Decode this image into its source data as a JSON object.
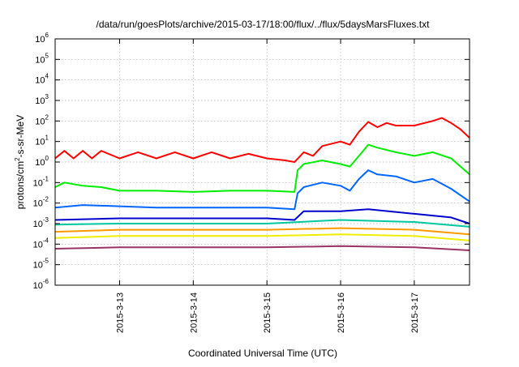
{
  "chart_data": {
    "type": "line",
    "title": "/data/run/goesPlots/archive/2015-03-17/18:00/flux/../flux/5daysMarsFluxes.txt",
    "xlabel": "Coordinated Universal Time (UTC)",
    "ylabel": "protons/cm2-s-sr-MeV",
    "ylabel_parts": [
      "protons/cm",
      "2",
      "-s-sr-MeV"
    ],
    "yscale": "log",
    "ylim": [
      1e-06,
      1000000.0
    ],
    "xlim": [
      "2015-03-12 03:00",
      "2015-03-17 18:00"
    ],
    "grid": true,
    "y_ticks": [
      {
        "base": "10",
        "exp": "-6",
        "value": 1e-06
      },
      {
        "base": "10",
        "exp": "-5",
        "value": 1e-05
      },
      {
        "base": "10",
        "exp": "-4",
        "value": 0.0001
      },
      {
        "base": "10",
        "exp": "-3",
        "value": 0.001
      },
      {
        "base": "10",
        "exp": "-2",
        "value": 0.01
      },
      {
        "base": "10",
        "exp": "-1",
        "value": 0.1
      },
      {
        "base": "10",
        "exp": "0",
        "value": 1
      },
      {
        "base": "10",
        "exp": "1",
        "value": 10
      },
      {
        "base": "10",
        "exp": "2",
        "value": 100
      },
      {
        "base": "10",
        "exp": "3",
        "value": 1000
      },
      {
        "base": "10",
        "exp": "4",
        "value": 10000
      },
      {
        "base": "10",
        "exp": "5",
        "value": 100000
      },
      {
        "base": "10",
        "exp": "6",
        "value": 1000000
      }
    ],
    "x_ticks": [
      {
        "label": "2015-3-13",
        "date": "2015-03-13 00:00"
      },
      {
        "label": "2015-3-14",
        "date": "2015-03-14 00:00"
      },
      {
        "label": "2015-3-15",
        "date": "2015-03-15 00:00"
      },
      {
        "label": "2015-3-16",
        "date": "2015-03-16 00:00"
      },
      {
        "label": "2015-3-17",
        "date": "2015-03-17 00:00"
      }
    ],
    "series": [
      {
        "color": "#ff0000",
        "points": [
          [
            "2015-03-12 03:00",
            1.5
          ],
          [
            "2015-03-12 06:00",
            3.5
          ],
          [
            "2015-03-12 09:00",
            1.5
          ],
          [
            "2015-03-12 12:00",
            3.5
          ],
          [
            "2015-03-12 15:00",
            1.5
          ],
          [
            "2015-03-12 18:00",
            3.5
          ],
          [
            "2015-03-13 00:00",
            1.5
          ],
          [
            "2015-03-13 06:00",
            3.0
          ],
          [
            "2015-03-13 12:00",
            1.5
          ],
          [
            "2015-03-13 18:00",
            3.0
          ],
          [
            "2015-03-14 00:00",
            1.5
          ],
          [
            "2015-03-14 06:00",
            3.0
          ],
          [
            "2015-03-14 12:00",
            1.5
          ],
          [
            "2015-03-14 18:00",
            2.5
          ],
          [
            "2015-03-15 00:00",
            1.5
          ],
          [
            "2015-03-15 06:00",
            1.2
          ],
          [
            "2015-03-15 09:00",
            1.0
          ],
          [
            "2015-03-15 12:00",
            3.0
          ],
          [
            "2015-03-15 15:00",
            2.0
          ],
          [
            "2015-03-15 18:00",
            6.0
          ],
          [
            "2015-03-16 00:00",
            10
          ],
          [
            "2015-03-16 03:00",
            7.0
          ],
          [
            "2015-03-16 06:00",
            30
          ],
          [
            "2015-03-16 09:00",
            90
          ],
          [
            "2015-03-16 12:00",
            50
          ],
          [
            "2015-03-16 15:00",
            80
          ],
          [
            "2015-03-16 18:00",
            60
          ],
          [
            "2015-03-17 00:00",
            60
          ],
          [
            "2015-03-17 06:00",
            100
          ],
          [
            "2015-03-17 09:00",
            140
          ],
          [
            "2015-03-17 12:00",
            80
          ],
          [
            "2015-03-17 15:00",
            40
          ],
          [
            "2015-03-17 18:00",
            15
          ]
        ]
      },
      {
        "color": "#00ee00",
        "points": [
          [
            "2015-03-12 03:00",
            0.06
          ],
          [
            "2015-03-12 06:00",
            0.1
          ],
          [
            "2015-03-12 12:00",
            0.07
          ],
          [
            "2015-03-12 18:00",
            0.06
          ],
          [
            "2015-03-13 00:00",
            0.04
          ],
          [
            "2015-03-13 12:00",
            0.04
          ],
          [
            "2015-03-14 00:00",
            0.035
          ],
          [
            "2015-03-14 12:00",
            0.04
          ],
          [
            "2015-03-15 00:00",
            0.04
          ],
          [
            "2015-03-15 09:00",
            0.035
          ],
          [
            "2015-03-15 10:00",
            0.4
          ],
          [
            "2015-03-15 12:00",
            0.8
          ],
          [
            "2015-03-15 18:00",
            1.2
          ],
          [
            "2015-03-16 00:00",
            0.8
          ],
          [
            "2015-03-16 03:00",
            0.6
          ],
          [
            "2015-03-16 06:00",
            2.0
          ],
          [
            "2015-03-16 09:00",
            7.0
          ],
          [
            "2015-03-16 12:00",
            5.0
          ],
          [
            "2015-03-16 18:00",
            3.0
          ],
          [
            "2015-03-17 00:00",
            2.0
          ],
          [
            "2015-03-17 06:00",
            3.0
          ],
          [
            "2015-03-17 12:00",
            1.5
          ],
          [
            "2015-03-17 18:00",
            0.25
          ]
        ]
      },
      {
        "color": "#0066ff",
        "points": [
          [
            "2015-03-12 03:00",
            0.006
          ],
          [
            "2015-03-12 12:00",
            0.008
          ],
          [
            "2015-03-13 00:00",
            0.007
          ],
          [
            "2015-03-13 12:00",
            0.006
          ],
          [
            "2015-03-14 00:00",
            0.006
          ],
          [
            "2015-03-14 12:00",
            0.006
          ],
          [
            "2015-03-15 00:00",
            0.006
          ],
          [
            "2015-03-15 09:00",
            0.005
          ],
          [
            "2015-03-15 10:00",
            0.03
          ],
          [
            "2015-03-15 12:00",
            0.06
          ],
          [
            "2015-03-15 18:00",
            0.1
          ],
          [
            "2015-03-16 00:00",
            0.07
          ],
          [
            "2015-03-16 03:00",
            0.04
          ],
          [
            "2015-03-16 06:00",
            0.15
          ],
          [
            "2015-03-16 09:00",
            0.4
          ],
          [
            "2015-03-16 12:00",
            0.25
          ],
          [
            "2015-03-16 18:00",
            0.2
          ],
          [
            "2015-03-17 00:00",
            0.1
          ],
          [
            "2015-03-17 06:00",
            0.15
          ],
          [
            "2015-03-17 12:00",
            0.05
          ],
          [
            "2015-03-17 18:00",
            0.012
          ]
        ]
      },
      {
        "color": "#0000cc",
        "points": [
          [
            "2015-03-12 03:00",
            0.0015
          ],
          [
            "2015-03-13 00:00",
            0.0018
          ],
          [
            "2015-03-14 00:00",
            0.0018
          ],
          [
            "2015-03-15 00:00",
            0.0018
          ],
          [
            "2015-03-15 09:00",
            0.0015
          ],
          [
            "2015-03-15 12:00",
            0.004
          ],
          [
            "2015-03-16 00:00",
            0.004
          ],
          [
            "2015-03-16 09:00",
            0.005
          ],
          [
            "2015-03-17 00:00",
            0.003
          ],
          [
            "2015-03-17 12:00",
            0.002
          ],
          [
            "2015-03-17 18:00",
            0.001
          ]
        ]
      },
      {
        "color": "#00c8a0",
        "points": [
          [
            "2015-03-12 03:00",
            0.0009
          ],
          [
            "2015-03-13 00:00",
            0.001
          ],
          [
            "2015-03-14 00:00",
            0.001
          ],
          [
            "2015-03-15 00:00",
            0.001
          ],
          [
            "2015-03-16 00:00",
            0.0015
          ],
          [
            "2015-03-17 00:00",
            0.0012
          ],
          [
            "2015-03-17 18:00",
            0.0007
          ]
        ]
      },
      {
        "color": "#ff9900",
        "points": [
          [
            "2015-03-12 03:00",
            0.0004
          ],
          [
            "2015-03-13 00:00",
            0.0005
          ],
          [
            "2015-03-14 00:00",
            0.0005
          ],
          [
            "2015-03-15 00:00",
            0.0005
          ],
          [
            "2015-03-16 00:00",
            0.0006
          ],
          [
            "2015-03-17 00:00",
            0.0005
          ],
          [
            "2015-03-17 18:00",
            0.0003
          ]
        ]
      },
      {
        "color": "#eeee00",
        "points": [
          [
            "2015-03-12 03:00",
            0.0002
          ],
          [
            "2015-03-13 00:00",
            0.00025
          ],
          [
            "2015-03-14 00:00",
            0.00025
          ],
          [
            "2015-03-15 00:00",
            0.00025
          ],
          [
            "2015-03-16 00:00",
            0.0003
          ],
          [
            "2015-03-17 00:00",
            0.00025
          ],
          [
            "2015-03-17 18:00",
            0.00015
          ]
        ]
      },
      {
        "color": "#993366",
        "points": [
          [
            "2015-03-12 03:00",
            6e-05
          ],
          [
            "2015-03-13 00:00",
            7e-05
          ],
          [
            "2015-03-14 00:00",
            7e-05
          ],
          [
            "2015-03-15 00:00",
            7e-05
          ],
          [
            "2015-03-16 00:00",
            8e-05
          ],
          [
            "2015-03-17 00:00",
            7e-05
          ],
          [
            "2015-03-17 18:00",
            5e-05
          ]
        ]
      }
    ]
  }
}
